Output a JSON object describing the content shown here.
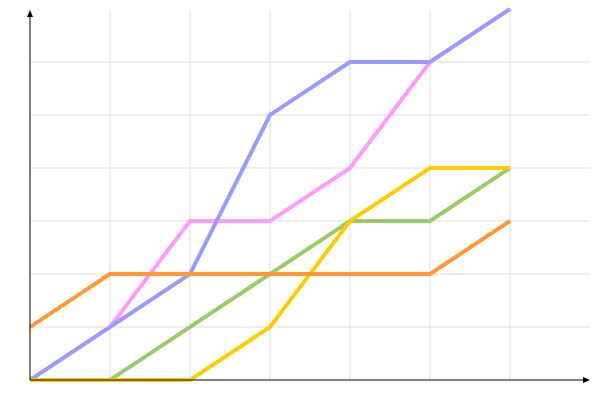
{
  "chart_data": {
    "type": "line",
    "title": "",
    "xlabel": "",
    "ylabel": "",
    "x": [
      0,
      1,
      2,
      3,
      4,
      5,
      6
    ],
    "xlim": [
      0,
      7
    ],
    "ylim": [
      0,
      7
    ],
    "grid": true,
    "legend": "none",
    "series": [
      {
        "color": "#ff99ff",
        "values": [
          0,
          1,
          3,
          3,
          4,
          6,
          7
        ]
      },
      {
        "color": "#9999ff",
        "values": [
          0,
          1,
          2,
          5,
          6,
          6,
          7
        ]
      },
      {
        "color": "#99cc66",
        "values": [
          0,
          0,
          1,
          2,
          3,
          3,
          4
        ]
      },
      {
        "color": "#ffcc00",
        "values": [
          0,
          0,
          0,
          1,
          3,
          4,
          4
        ]
      },
      {
        "color": "#ff9933",
        "values": [
          1,
          2,
          2,
          2,
          2,
          2,
          3
        ]
      }
    ]
  }
}
